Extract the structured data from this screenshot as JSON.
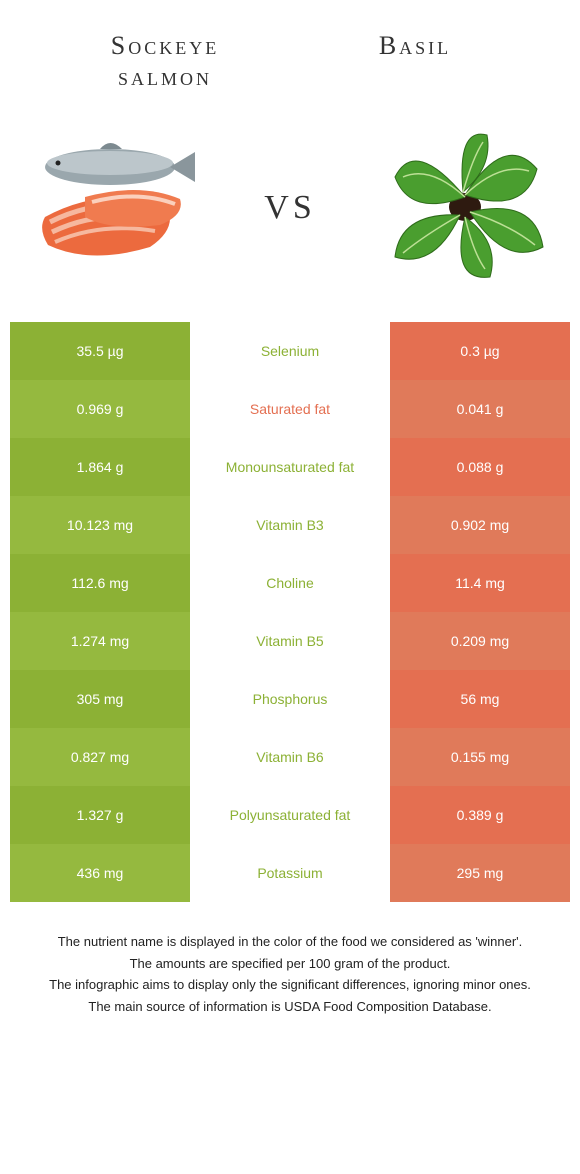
{
  "colors": {
    "salmon": "#e46f51",
    "basil": "#8cb135",
    "salmon_alt": "#e07a5a",
    "basil_alt": "#95b93f",
    "text_dark": "#333333",
    "white": "#ffffff"
  },
  "header": {
    "left_title": "Sockeye\nsalmon",
    "right_title": "Basil",
    "vs": "vs"
  },
  "rows": [
    {
      "left": "35.5 µg",
      "label": "Selenium",
      "right": "0.3 µg",
      "winner": "left"
    },
    {
      "left": "0.969 g",
      "label": "Saturated fat",
      "right": "0.041 g",
      "winner": "right"
    },
    {
      "left": "1.864 g",
      "label": "Monounsaturated fat",
      "right": "0.088 g",
      "winner": "left"
    },
    {
      "left": "10.123 mg",
      "label": "Vitamin B3",
      "right": "0.902 mg",
      "winner": "left"
    },
    {
      "left": "112.6 mg",
      "label": "Choline",
      "right": "11.4 mg",
      "winner": "left"
    },
    {
      "left": "1.274 mg",
      "label": "Vitamin B5",
      "right": "0.209 mg",
      "winner": "left"
    },
    {
      "left": "305 mg",
      "label": "Phosphorus",
      "right": "56 mg",
      "winner": "left"
    },
    {
      "left": "0.827 mg",
      "label": "Vitamin B6",
      "right": "0.155 mg",
      "winner": "left"
    },
    {
      "left": "1.327 g",
      "label": "Polyunsaturated fat",
      "right": "0.389 g",
      "winner": "left"
    },
    {
      "left": "436 mg",
      "label": "Potassium",
      "right": "295 mg",
      "winner": "left"
    }
  ],
  "notes": [
    "The nutrient name is displayed in the color of the food we considered as 'winner'.",
    "The amounts are specified per 100 gram of the product.",
    "The infographic aims to display only the significant differences, ignoring minor ones.",
    "The main source of information is USDA Food Composition Database."
  ]
}
